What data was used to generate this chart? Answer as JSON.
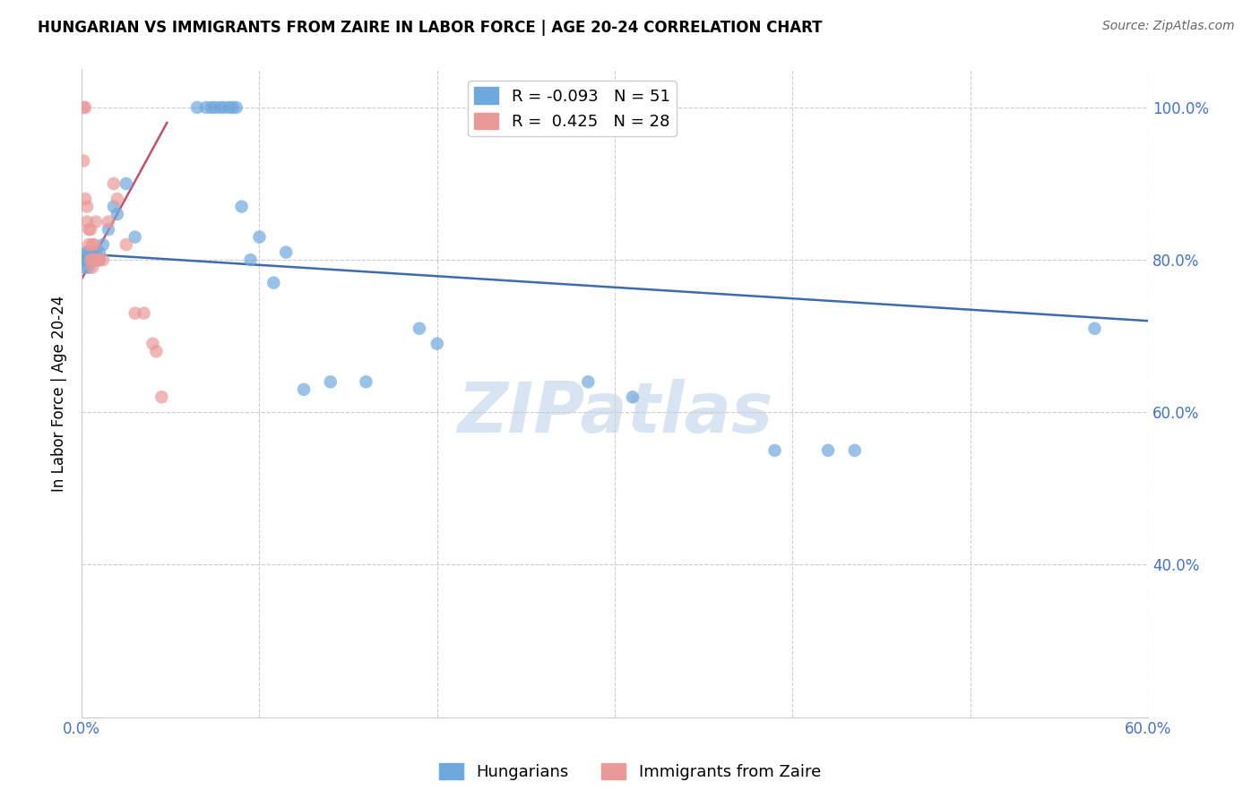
{
  "title": "HUNGARIAN VS IMMIGRANTS FROM ZAIRE IN LABOR FORCE | AGE 20-24 CORRELATION CHART",
  "source": "Source: ZipAtlas.com",
  "ylabel": "In Labor Force | Age 20-24",
  "xlim": [
    0.0,
    0.6
  ],
  "ylim": [
    0.2,
    1.05
  ],
  "yticks": [
    0.4,
    0.6,
    0.8,
    1.0
  ],
  "ytick_labels": [
    "40.0%",
    "60.0%",
    "80.0%",
    "100.0%"
  ],
  "xticks": [
    0.0,
    0.1,
    0.2,
    0.3,
    0.4,
    0.5,
    0.6
  ],
  "xtick_labels": [
    "0.0%",
    "",
    "",
    "",
    "",
    "",
    "60.0%"
  ],
  "blue_R": -0.093,
  "blue_N": 51,
  "pink_R": 0.425,
  "pink_N": 28,
  "blue_color": "#6fa8dc",
  "pink_color": "#ea9999",
  "blue_line_color": "#3d6ab0",
  "pink_line_color": "#c0506a",
  "legend_label_blue": "Hungarians",
  "legend_label_pink": "Immigrants from Zaire",
  "watermark": "ZIPatlas",
  "blue_x": [
    0.001,
    0.002,
    0.002,
    0.003,
    0.003,
    0.003,
    0.004,
    0.004,
    0.005,
    0.005,
    0.005,
    0.006,
    0.006,
    0.007,
    0.007,
    0.008,
    0.008,
    0.009,
    0.01,
    0.01,
    0.012,
    0.015,
    0.018,
    0.02,
    0.025,
    0.03,
    0.065,
    0.07,
    0.073,
    0.075,
    0.078,
    0.08,
    0.083,
    0.085,
    0.087,
    0.09,
    0.095,
    0.1,
    0.108,
    0.115,
    0.125,
    0.14,
    0.16,
    0.19,
    0.2,
    0.285,
    0.31,
    0.39,
    0.42,
    0.435,
    0.57
  ],
  "blue_y": [
    0.8,
    0.8,
    0.79,
    0.8,
    0.81,
    0.81,
    0.8,
    0.79,
    0.8,
    0.8,
    0.81,
    0.8,
    0.8,
    0.8,
    0.81,
    0.8,
    0.81,
    0.8,
    0.8,
    0.81,
    0.82,
    0.84,
    0.87,
    0.86,
    0.9,
    0.83,
    1.0,
    1.0,
    1.0,
    1.0,
    1.0,
    1.0,
    1.0,
    1.0,
    1.0,
    0.87,
    0.8,
    0.83,
    0.77,
    0.81,
    0.63,
    0.64,
    0.64,
    0.71,
    0.69,
    0.64,
    0.62,
    0.55,
    0.55,
    0.55,
    0.71
  ],
  "pink_x": [
    0.001,
    0.001,
    0.002,
    0.002,
    0.003,
    0.003,
    0.004,
    0.004,
    0.005,
    0.005,
    0.006,
    0.006,
    0.006,
    0.007,
    0.007,
    0.008,
    0.009,
    0.01,
    0.012,
    0.015,
    0.018,
    0.02,
    0.025,
    0.03,
    0.035,
    0.04,
    0.042,
    0.045
  ],
  "pink_y": [
    1.0,
    0.93,
    1.0,
    0.88,
    0.87,
    0.85,
    0.84,
    0.82,
    0.84,
    0.8,
    0.82,
    0.8,
    0.79,
    0.82,
    0.8,
    0.85,
    0.8,
    0.8,
    0.8,
    0.85,
    0.9,
    0.88,
    0.82,
    0.73,
    0.73,
    0.69,
    0.68,
    0.62
  ],
  "blue_trend_x": [
    0.0,
    0.6
  ],
  "blue_trend_y": [
    0.808,
    0.72
  ],
  "pink_trend_x": [
    0.0,
    0.048
  ],
  "pink_trend_y": [
    0.775,
    0.98
  ]
}
